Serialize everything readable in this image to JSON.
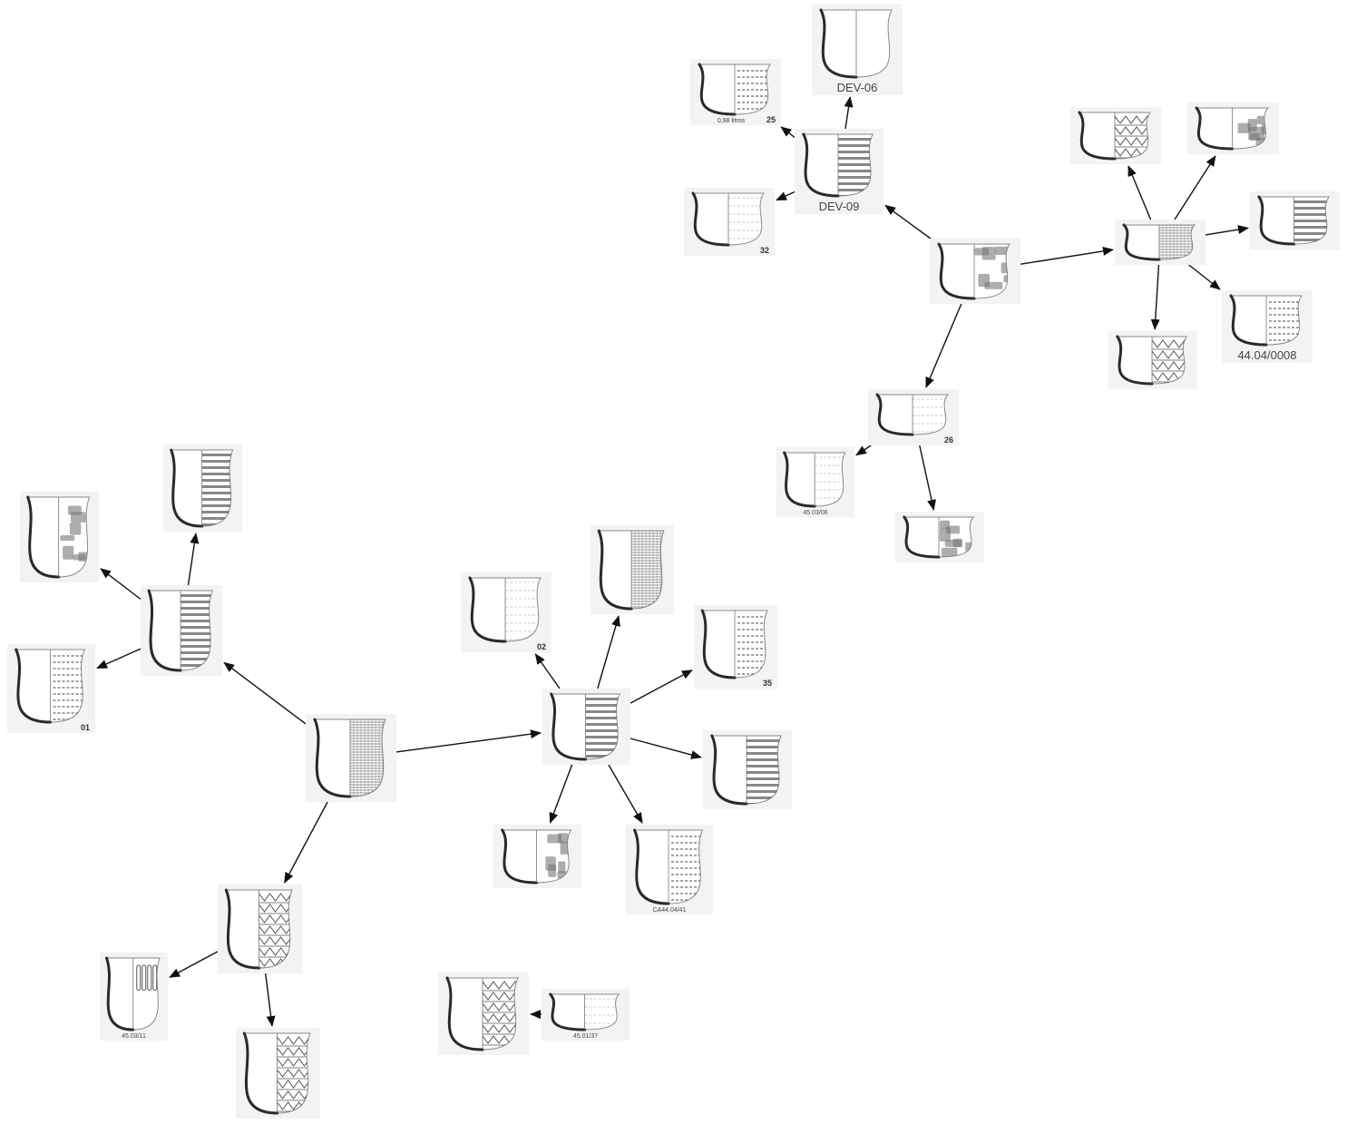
{
  "colors": {
    "card_bg": "#f3f3f3",
    "profile": "#2a2a2a",
    "outline": "#8a8a8a",
    "pattern": "#555555",
    "edge": "#111111",
    "label": "#444444"
  },
  "nodes": [
    {
      "id": "n1",
      "label": "",
      "pattern": "crosshatch"
    },
    {
      "id": "n2",
      "label": "",
      "pattern": "stripes"
    },
    {
      "id": "n3",
      "label": "",
      "pattern": "stripes"
    },
    {
      "id": "n4",
      "label": "",
      "pattern": "patches"
    },
    {
      "id": "n5",
      "label": "01",
      "pattern": "dots"
    },
    {
      "id": "n6",
      "label": "",
      "pattern": "zigzag"
    },
    {
      "id": "n7",
      "label": "45.03/11",
      "pattern": "loops"
    },
    {
      "id": "n8",
      "label": "",
      "pattern": "zigzag"
    },
    {
      "id": "n9",
      "label": "",
      "pattern": "stripes"
    },
    {
      "id": "n10",
      "label": "02",
      "pattern": "faint"
    },
    {
      "id": "n11",
      "label": "",
      "pattern": "crosshatch"
    },
    {
      "id": "n12",
      "label": "35",
      "pattern": "dots"
    },
    {
      "id": "n13",
      "label": "",
      "pattern": "stripes"
    },
    {
      "id": "n14",
      "label": "CA44.04/41",
      "pattern": "dots"
    },
    {
      "id": "n15",
      "label": "",
      "pattern": "patches"
    },
    {
      "id": "n16",
      "label": "",
      "pattern": "zigzag"
    },
    {
      "id": "n17",
      "label": "45.01/37",
      "pattern": "faint"
    },
    {
      "id": "n18",
      "label": "",
      "pattern": "patches"
    },
    {
      "id": "n19",
      "label": "DEV-09",
      "pattern": "stripes"
    },
    {
      "id": "n20",
      "label": "DEV-06",
      "pattern": "none"
    },
    {
      "id": "n21",
      "label": "25",
      "pattern": "dots"
    },
    {
      "id": "n21b",
      "label": "0,98 litros",
      "pattern": ""
    },
    {
      "id": "n22",
      "label": "32",
      "pattern": "faint"
    },
    {
      "id": "n23",
      "label": "26",
      "pattern": "faint"
    },
    {
      "id": "n24",
      "label": "45.03/06",
      "pattern": "faint"
    },
    {
      "id": "n25",
      "label": "",
      "pattern": "patches"
    },
    {
      "id": "n26",
      "label": "",
      "pattern": "crosshatch"
    },
    {
      "id": "n27",
      "label": "",
      "pattern": "zigzag"
    },
    {
      "id": "n28",
      "label": "",
      "pattern": "patches"
    },
    {
      "id": "n29",
      "label": "",
      "pattern": "stripes"
    },
    {
      "id": "n30",
      "label": "44.04/0008",
      "pattern": "dots"
    },
    {
      "id": "n31",
      "label": "",
      "pattern": "zigzag"
    }
  ],
  "edges": [
    [
      "n1",
      "n2"
    ],
    [
      "n2",
      "n3"
    ],
    [
      "n2",
      "n4"
    ],
    [
      "n2",
      "n5"
    ],
    [
      "n1",
      "n6"
    ],
    [
      "n6",
      "n7"
    ],
    [
      "n6",
      "n8"
    ],
    [
      "n1",
      "n9"
    ],
    [
      "n9",
      "n10"
    ],
    [
      "n9",
      "n11"
    ],
    [
      "n9",
      "n12"
    ],
    [
      "n9",
      "n13"
    ],
    [
      "n9",
      "n14"
    ],
    [
      "n9",
      "n15"
    ],
    [
      "n17",
      "n16"
    ],
    [
      "n18",
      "n19"
    ],
    [
      "n19",
      "n20"
    ],
    [
      "n19",
      "n21"
    ],
    [
      "n19",
      "n22"
    ],
    [
      "n18",
      "n23"
    ],
    [
      "n23",
      "n24"
    ],
    [
      "n23",
      "n25"
    ],
    [
      "n18",
      "n26"
    ],
    [
      "n26",
      "n27"
    ],
    [
      "n26",
      "n28"
    ],
    [
      "n26",
      "n29"
    ],
    [
      "n26",
      "n30"
    ],
    [
      "n26",
      "n31"
    ]
  ]
}
